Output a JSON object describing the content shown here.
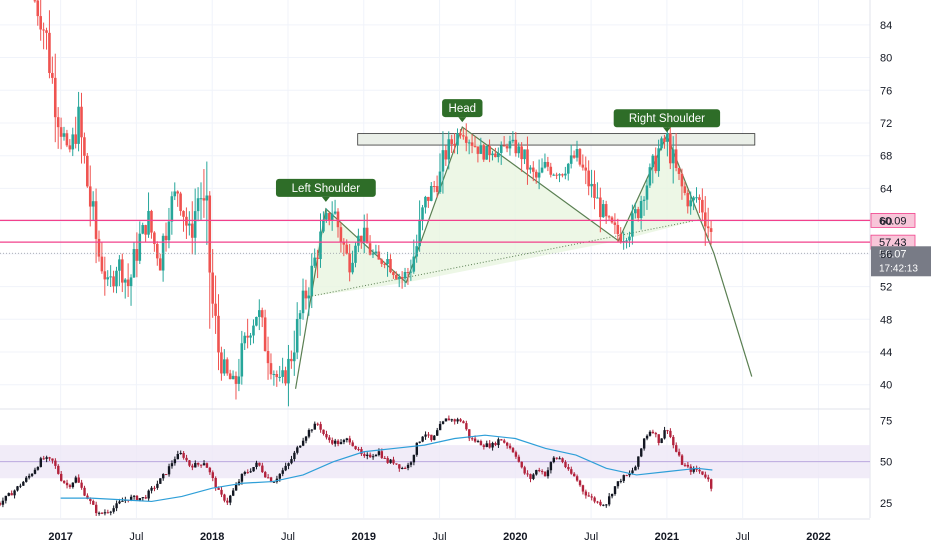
{
  "chart_data": {
    "type": "candlestick",
    "price_axis": {
      "ticks": [
        40,
        44,
        48,
        52,
        56,
        60,
        64,
        68,
        72,
        76,
        80,
        84
      ],
      "tick_labels": [
        "40",
        "44",
        "48",
        "52",
        "56",
        "60",
        "64",
        "68",
        "72",
        "76",
        "80",
        "84"
      ],
      "range": [
        37.4,
        86.3
      ]
    },
    "time_axis": {
      "labels": [
        "2017",
        "Jul",
        "2018",
        "Jul",
        "2019",
        "Jul",
        "2020",
        "Jul",
        "2021",
        "Jul",
        "2022"
      ],
      "tick_dates": [
        2017.0,
        2017.5,
        2018.0,
        2018.5,
        2019.0,
        2019.5,
        2020.0,
        2020.5,
        2021.0,
        2021.5,
        2022.0
      ],
      "range": [
        2016.6,
        2022.34
      ]
    },
    "price_points": [
      [
        2016.83,
        87
      ],
      [
        2016.9,
        83
      ],
      [
        2016.97,
        74
      ],
      [
        2017.05,
        68
      ],
      [
        2017.12,
        72
      ],
      [
        2017.18,
        64
      ],
      [
        2017.25,
        56
      ],
      [
        2017.32,
        52
      ],
      [
        2017.38,
        55
      ],
      [
        2017.45,
        52
      ],
      [
        2017.52,
        58
      ],
      [
        2017.58,
        60
      ],
      [
        2017.65,
        55
      ],
      [
        2017.72,
        62
      ],
      [
        2017.78,
        64
      ],
      [
        2017.85,
        58
      ],
      [
        2017.92,
        64
      ],
      [
        2017.97,
        58
      ],
      [
        2018.0,
        50
      ],
      [
        2018.05,
        43
      ],
      [
        2018.1,
        41
      ],
      [
        2018.15,
        40
      ],
      [
        2018.2,
        44
      ],
      [
        2018.25,
        47
      ],
      [
        2018.3,
        49
      ],
      [
        2018.35,
        45
      ],
      [
        2018.4,
        42
      ],
      [
        2018.45,
        40
      ],
      [
        2018.5,
        42
      ],
      [
        2018.55,
        46
      ],
      [
        2018.6,
        50
      ],
      [
        2018.65,
        53
      ],
      [
        2018.7,
        57
      ],
      [
        2018.75,
        60
      ],
      [
        2018.8,
        61.5
      ],
      [
        2018.85,
        58
      ],
      [
        2018.9,
        55
      ],
      [
        2018.95,
        58
      ],
      [
        2019.0,
        58
      ],
      [
        2019.05,
        56
      ],
      [
        2019.1,
        55
      ],
      [
        2019.15,
        55.5
      ],
      [
        2019.2,
        54
      ],
      [
        2019.25,
        53
      ],
      [
        2019.3,
        54
      ],
      [
        2019.35,
        57
      ],
      [
        2019.4,
        62
      ],
      [
        2019.45,
        64
      ],
      [
        2019.5,
        65
      ],
      [
        2019.55,
        69
      ],
      [
        2019.6,
        70
      ],
      [
        2019.65,
        71.5
      ],
      [
        2019.7,
        70
      ],
      [
        2019.75,
        69
      ],
      [
        2019.8,
        68
      ],
      [
        2019.85,
        69
      ],
      [
        2019.9,
        68
      ],
      [
        2019.95,
        69.5
      ],
      [
        2020.0,
        69
      ],
      [
        2020.05,
        68
      ],
      [
        2020.1,
        66
      ],
      [
        2020.15,
        65
      ],
      [
        2020.2,
        67
      ],
      [
        2020.25,
        66
      ],
      [
        2020.3,
        66
      ],
      [
        2020.35,
        67
      ],
      [
        2020.4,
        68
      ],
      [
        2020.45,
        66
      ],
      [
        2020.5,
        64
      ],
      [
        2020.55,
        62
      ],
      [
        2020.6,
        60
      ],
      [
        2020.65,
        59
      ],
      [
        2020.7,
        58
      ],
      [
        2020.75,
        59
      ],
      [
        2020.8,
        61
      ],
      [
        2020.85,
        64
      ],
      [
        2020.9,
        66
      ],
      [
        2020.95,
        69
      ],
      [
        2021.0,
        70
      ],
      [
        2021.03,
        68
      ],
      [
        2021.06,
        66
      ],
      [
        2021.1,
        64
      ],
      [
        2021.15,
        62
      ],
      [
        2021.2,
        63
      ],
      [
        2021.25,
        61
      ],
      [
        2021.28,
        59
      ],
      [
        2021.3,
        57.4
      ],
      [
        2021.31,
        56.07
      ]
    ],
    "patterns": {
      "name": "Head and Shoulders",
      "labels": [
        "Left Shoulder",
        "Head",
        "Right Shoulder"
      ],
      "left_shoulder": {
        "base_left": [
          2018.55,
          39.5
        ],
        "peak": [
          2018.75,
          61.5
        ],
        "base_right": [
          2019.28,
          52.5
        ],
        "neckline_start": [
          2018.62,
          50.7
        ]
      },
      "head": {
        "peak": [
          2019.65,
          71.5
        ],
        "base_right": [
          2020.68,
          57.6
        ]
      },
      "right_shoulder": {
        "peak": [
          2021.0,
          70.5
        ],
        "base_right": [
          2021.22,
          60.2
        ]
      },
      "neckline": [
        [
          2018.62,
          50.7
        ],
        [
          2021.22,
          60.2
        ]
      ],
      "projection": [
        [
          2021.31,
          56.07
        ],
        [
          2021.56,
          41
        ]
      ],
      "resistance_zone": [
        69.3,
        70.7
      ],
      "resistance_zone_dates": [
        2018.96,
        2021.58
      ]
    },
    "horizontal_levels": [
      {
        "value": 60.09,
        "label": "60.09",
        "color": "#f2418c"
      },
      {
        "value": 57.43,
        "label": "57.43",
        "color": "#f2418c"
      }
    ],
    "last_price": {
      "value": 56.07,
      "label": "56.07",
      "timer": "17:42:13"
    },
    "indicator": {
      "type": "RSI",
      "ticks": [
        25,
        50,
        75
      ],
      "tick_labels": [
        "25",
        "50",
        "75"
      ],
      "range": [
        16,
        80
      ],
      "band": [
        40,
        60
      ],
      "midline": 50,
      "series": [
        [
          2016.6,
          25
        ],
        [
          2016.7,
          33
        ],
        [
          2016.8,
          42
        ],
        [
          2016.88,
          52
        ],
        [
          2016.95,
          50
        ],
        [
          2017.0,
          40
        ],
        [
          2017.05,
          35
        ],
        [
          2017.1,
          40
        ],
        [
          2017.15,
          32
        ],
        [
          2017.2,
          25
        ],
        [
          2017.25,
          18
        ],
        [
          2017.3,
          20
        ],
        [
          2017.35,
          22
        ],
        [
          2017.4,
          26
        ],
        [
          2017.45,
          28
        ],
        [
          2017.5,
          28
        ],
        [
          2017.55,
          28
        ],
        [
          2017.6,
          33
        ],
        [
          2017.65,
          38
        ],
        [
          2017.7,
          44
        ],
        [
          2017.75,
          52
        ],
        [
          2017.8,
          55
        ],
        [
          2017.85,
          48
        ],
        [
          2017.9,
          48
        ],
        [
          2017.95,
          50
        ],
        [
          2018.0,
          40
        ],
        [
          2018.05,
          30
        ],
        [
          2018.1,
          26
        ],
        [
          2018.15,
          34
        ],
        [
          2018.2,
          42
        ],
        [
          2018.25,
          45
        ],
        [
          2018.3,
          49
        ],
        [
          2018.35,
          42
        ],
        [
          2018.4,
          38
        ],
        [
          2018.45,
          43
        ],
        [
          2018.5,
          48
        ],
        [
          2018.55,
          56
        ],
        [
          2018.6,
          64
        ],
        [
          2018.65,
          70
        ],
        [
          2018.7,
          73
        ],
        [
          2018.75,
          64
        ],
        [
          2018.8,
          62
        ],
        [
          2018.85,
          61
        ],
        [
          2018.9,
          64
        ],
        [
          2018.95,
          58
        ],
        [
          2019.0,
          52
        ],
        [
          2019.05,
          54
        ],
        [
          2019.1,
          56
        ],
        [
          2019.15,
          50
        ],
        [
          2019.2,
          50
        ],
        [
          2019.25,
          46
        ],
        [
          2019.3,
          48
        ],
        [
          2019.35,
          60
        ],
        [
          2019.4,
          68
        ],
        [
          2019.45,
          62
        ],
        [
          2019.5,
          71
        ],
        [
          2019.55,
          76
        ],
        [
          2019.6,
          75
        ],
        [
          2019.65,
          75
        ],
        [
          2019.7,
          64
        ],
        [
          2019.75,
          62
        ],
        [
          2019.8,
          60
        ],
        [
          2019.85,
          60
        ],
        [
          2019.9,
          64
        ],
        [
          2019.95,
          60
        ],
        [
          2020.0,
          55
        ],
        [
          2020.05,
          44
        ],
        [
          2020.1,
          40
        ],
        [
          2020.15,
          46
        ],
        [
          2020.2,
          42
        ],
        [
          2020.25,
          52
        ],
        [
          2020.3,
          52
        ],
        [
          2020.35,
          44
        ],
        [
          2020.4,
          40
        ],
        [
          2020.45,
          32
        ],
        [
          2020.5,
          28
        ],
        [
          2020.55,
          25
        ],
        [
          2020.6,
          25
        ],
        [
          2020.65,
          34
        ],
        [
          2020.7,
          40
        ],
        [
          2020.75,
          42
        ],
        [
          2020.8,
          48
        ],
        [
          2020.85,
          64
        ],
        [
          2020.9,
          70
        ],
        [
          2020.95,
          62
        ],
        [
          2021.0,
          71
        ],
        [
          2021.05,
          58
        ],
        [
          2021.1,
          49
        ],
        [
          2021.15,
          45
        ],
        [
          2021.2,
          45
        ],
        [
          2021.25,
          42
        ],
        [
          2021.28,
          38
        ],
        [
          2021.31,
          30
        ]
      ],
      "ma_series": [
        [
          2017.0,
          28
        ],
        [
          2017.2,
          28
        ],
        [
          2017.4,
          27
        ],
        [
          2017.6,
          26
        ],
        [
          2017.8,
          29
        ],
        [
          2018.0,
          34
        ],
        [
          2018.2,
          37
        ],
        [
          2018.4,
          38
        ],
        [
          2018.6,
          42
        ],
        [
          2018.8,
          50
        ],
        [
          2019.0,
          56
        ],
        [
          2019.2,
          58
        ],
        [
          2019.4,
          60
        ],
        [
          2019.6,
          64
        ],
        [
          2019.8,
          66
        ],
        [
          2020.0,
          64
        ],
        [
          2020.2,
          58
        ],
        [
          2020.4,
          54
        ],
        [
          2020.6,
          46
        ],
        [
          2020.8,
          42
        ],
        [
          2021.0,
          44
        ],
        [
          2021.2,
          46
        ],
        [
          2021.3,
          45
        ]
      ]
    },
    "colors": {
      "up": "#26a69a",
      "down": "#ef5350",
      "level": "#f2418c",
      "label_bg": "#2e6d28",
      "pattern_fill": "#e8f5e0",
      "pattern_line": "#5a7f52",
      "rsi_band": "#ede7f6",
      "rsi_mid": "#b39ddb",
      "rsi_ma": "#2e9fd8",
      "last_price_bg": "#787b86"
    },
    "ohlc_note": ""
  }
}
